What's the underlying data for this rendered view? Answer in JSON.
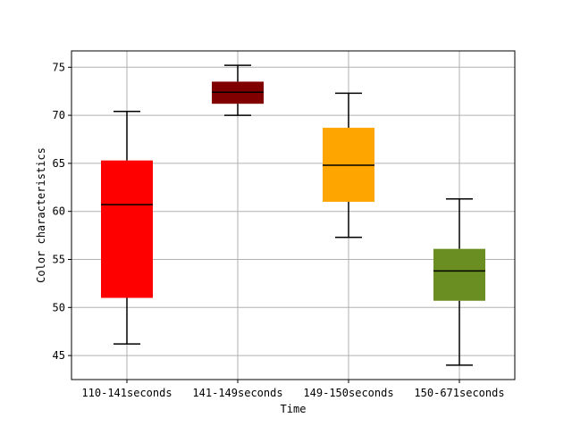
{
  "chart_data": {
    "type": "boxplot",
    "title": "",
    "xlabel": "Time",
    "ylabel": "Color characteristics",
    "ylim": [
      42.5,
      76.7
    ],
    "yticks": [
      45,
      50,
      55,
      60,
      65,
      70,
      75
    ],
    "grid": true,
    "categories": [
      "110-141seconds",
      "141-149seconds",
      "149-150seconds",
      "150-671seconds"
    ],
    "boxes": [
      {
        "category": "110-141seconds",
        "whisker_low": 46.2,
        "q1": 51.0,
        "median": 60.7,
        "q3": 65.3,
        "whisker_high": 70.4,
        "color": "#ff0000"
      },
      {
        "category": "141-149seconds",
        "whisker_low": 70.0,
        "q1": 71.2,
        "median": 72.4,
        "q3": 73.5,
        "whisker_high": 75.2,
        "color": "#800000"
      },
      {
        "category": "149-150seconds",
        "whisker_low": 57.3,
        "q1": 61.0,
        "median": 64.8,
        "q3": 68.7,
        "whisker_high": 72.3,
        "color": "#ffa500"
      },
      {
        "category": "150-671seconds",
        "whisker_low": 44.0,
        "q1": 50.7,
        "median": 53.8,
        "q3": 56.1,
        "whisker_high": 61.3,
        "color": "#6b8e23"
      }
    ]
  }
}
